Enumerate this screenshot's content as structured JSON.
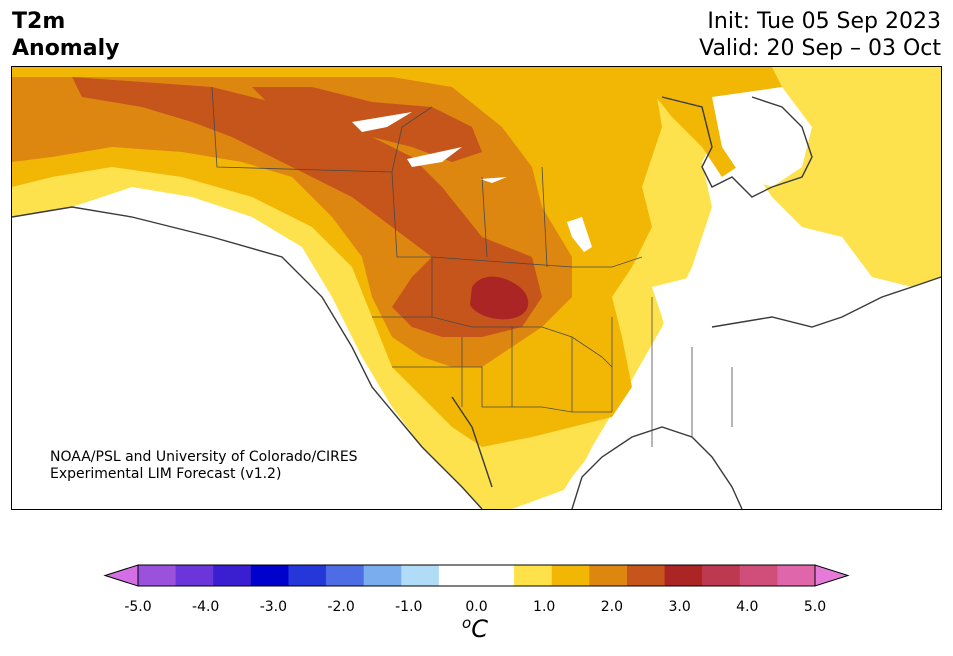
{
  "title": {
    "line1": "T2m",
    "line2": "Anomaly"
  },
  "init": {
    "line1": "Init: Tue 05 Sep 2023",
    "line2": "Valid: 20 Sep – 03 Oct"
  },
  "credit": {
    "line1": "NOAA/PSL and University of Colorado/CIRES",
    "line2": "Experimental LIM Forecast (v1.2)"
  },
  "colorbar": {
    "colors": [
      "#d36fe5",
      "#9a52dc",
      "#6b36d9",
      "#3a1fd0",
      "#0000cc",
      "#2637d9",
      "#4e6de4",
      "#79aeee",
      "#b0dcf7",
      "#ffffff",
      "#ffffff",
      "#ffe24a",
      "#f2b705",
      "#dd8710",
      "#c5551a",
      "#ac2525",
      "#bc3950",
      "#cf4f7a",
      "#df66ab",
      "#e57bd8"
    ],
    "ticks": [
      "-5.0",
      "-4.0",
      "-3.0",
      "-2.0",
      "-1.0",
      "0.0",
      "1.0",
      "2.0",
      "3.0",
      "4.0",
      "5.0"
    ],
    "unit": "C",
    "unit_sup": "o"
  },
  "anomaly_colors": {
    "light_yellow": "#fde24e",
    "gold": "#f2b705",
    "orange": "#dd8710",
    "dark_orange": "#c5551a",
    "red": "#ac2525",
    "coast": "#3a3a3a"
  }
}
